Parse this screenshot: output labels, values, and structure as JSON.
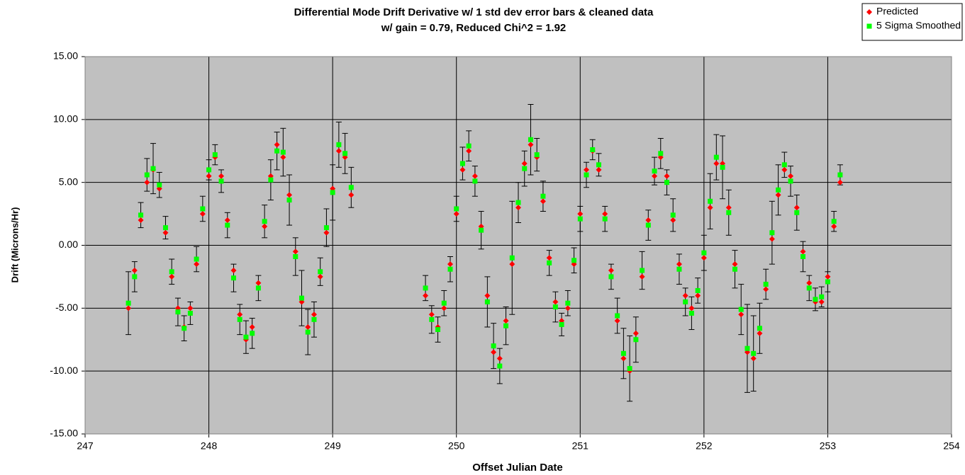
{
  "chart_data": {
    "type": "scatter",
    "title": "Differential Mode Drift Derivative w/ 1 std dev error bars & cleaned data",
    "subtitle": "w/ gain = 0.79, Reduced Chi^2 = 1.92",
    "x_label": "Offset Julian Date",
    "y_label": "Drift (Microns/Hr)",
    "legend": "top-right",
    "grid": true,
    "background": "#c0c0c0",
    "xlim": [
      247,
      254
    ],
    "xticks": [
      247,
      248,
      249,
      250,
      251,
      252,
      253,
      254
    ],
    "ylim": [
      -15,
      15
    ],
    "yticks": [
      {
        "value": -15,
        "label": "-15.00"
      },
      {
        "value": -10,
        "label": "-10.00"
      },
      {
        "value": -5,
        "label": "-5.00"
      },
      {
        "value": 0,
        "label": "0.00"
      },
      {
        "value": 5,
        "label": "5.00"
      },
      {
        "value": 10,
        "label": "10.00"
      },
      {
        "value": 15,
        "label": "15.00"
      }
    ],
    "x": [
      247.35,
      247.4,
      247.45,
      247.5,
      247.55,
      247.6,
      247.65,
      247.7,
      247.75,
      247.8,
      247.85,
      247.9,
      247.95,
      248.0,
      248.05,
      248.1,
      248.15,
      248.2,
      248.25,
      248.3,
      248.35,
      248.4,
      248.45,
      248.5,
      248.55,
      248.6,
      248.65,
      248.7,
      248.75,
      248.8,
      248.85,
      248.9,
      248.95,
      249.0,
      249.05,
      249.1,
      249.15,
      249.75,
      249.8,
      249.85,
      249.9,
      249.95,
      250.0,
      250.05,
      250.1,
      250.15,
      250.2,
      250.25,
      250.3,
      250.35,
      250.4,
      250.45,
      250.5,
      250.55,
      250.6,
      250.65,
      250.7,
      250.75,
      250.8,
      250.85,
      250.9,
      250.95,
      251.0,
      251.05,
      251.1,
      251.15,
      251.2,
      251.25,
      251.3,
      251.35,
      251.4,
      251.45,
      251.5,
      251.55,
      251.6,
      251.65,
      251.7,
      251.75,
      251.8,
      251.85,
      251.9,
      251.95,
      252.0,
      252.05,
      252.1,
      252.15,
      252.2,
      252.25,
      252.3,
      252.35,
      252.4,
      252.45,
      252.5,
      252.55,
      252.6,
      252.65,
      252.7,
      252.75,
      252.8,
      252.85,
      252.9,
      252.95,
      253.0,
      253.05,
      253.1
    ],
    "series": [
      {
        "name": "Predicted",
        "color": "#ff0000",
        "marker": "diamond",
        "values": [
          -5,
          -2,
          2,
          5,
          6,
          4.5,
          1,
          -2.5,
          -5,
          -6.5,
          -5,
          -1.5,
          2.5,
          5.5,
          7,
          5.5,
          2,
          -2,
          -5.5,
          -7.5,
          -6.5,
          -3,
          1.5,
          5.5,
          8,
          7,
          4,
          -0.5,
          -4.5,
          -6.5,
          -5.5,
          -2.5,
          1,
          4.5,
          7.5,
          7,
          4,
          -4,
          -5.5,
          -6.5,
          -5,
          -1.5,
          2.5,
          6,
          7.5,
          5.5,
          1.5,
          -4,
          -8.5,
          -9,
          -6,
          -1.5,
          3,
          6.5,
          8,
          7,
          3.5,
          -1,
          -4.5,
          -6,
          -5,
          -1.5,
          2.5,
          6,
          7.5,
          6,
          2.5,
          -2,
          -6,
          -9,
          -10,
          -7,
          -2.5,
          2,
          5.5,
          7,
          5.5,
          2,
          -1.5,
          -4,
          -5,
          -4,
          -1,
          3,
          6.5,
          6.5,
          3,
          -1.5,
          -5.5,
          -8.5,
          -9,
          -7,
          -3.5,
          0.5,
          4,
          6,
          5.5,
          3,
          -0.5,
          -3,
          -4.5,
          -4.5,
          -2.5,
          1.5,
          5
        ]
      },
      {
        "name": "5 Sigma Smoothed",
        "color": "#00ff00",
        "marker": "square",
        "values": [
          -4.6,
          -2.5,
          2.4,
          5.6,
          6.1,
          4.8,
          1.4,
          -2.1,
          -5.3,
          -6.6,
          -5.4,
          -1.1,
          2.9,
          6.0,
          7.2,
          5.1,
          1.6,
          -2.6,
          -5.9,
          -7.3,
          -7.0,
          -3.4,
          1.9,
          5.2,
          7.5,
          7.4,
          3.6,
          -0.9,
          -4.2,
          -6.9,
          -5.9,
          -2.1,
          1.4,
          4.2,
          8.0,
          7.3,
          4.6,
          -3.4,
          -5.9,
          -6.7,
          -4.6,
          -1.9,
          2.9,
          6.5,
          7.9,
          5.1,
          1.2,
          -4.5,
          -8.0,
          -9.6,
          -6.4,
          -1.0,
          3.4,
          6.1,
          8.4,
          7.2,
          3.9,
          -1.4,
          -4.9,
          -6.3,
          -4.6,
          -1.2,
          2.1,
          5.6,
          7.6,
          6.4,
          2.1,
          -2.5,
          -5.6,
          -8.6,
          -9.8,
          -7.5,
          -2.0,
          1.6,
          5.9,
          7.3,
          5.0,
          2.4,
          -1.9,
          -4.5,
          -5.4,
          -3.6,
          -0.6,
          3.5,
          7.0,
          6.2,
          2.6,
          -1.9,
          -5.1,
          -8.2,
          -8.6,
          -6.6,
          -3.1,
          1.0,
          4.4,
          6.4,
          5.1,
          2.6,
          -0.9,
          -3.4,
          -4.3,
          -4.1,
          -2.9,
          1.9,
          5.6
        ],
        "errors": [
          2.5,
          1.2,
          1.0,
          1.3,
          2.0,
          1.0,
          0.9,
          1.0,
          1.1,
          1.0,
          0.9,
          1.0,
          1.0,
          0.8,
          0.8,
          0.9,
          1.0,
          1.1,
          1.2,
          1.3,
          1.2,
          1.0,
          1.3,
          1.6,
          1.5,
          1.9,
          2.0,
          1.5,
          2.2,
          1.8,
          1.4,
          1.1,
          1.5,
          2.2,
          1.8,
          1.6,
          1.6,
          1.0,
          1.1,
          1.0,
          1.0,
          1.0,
          1.0,
          1.3,
          1.2,
          1.2,
          1.5,
          2.0,
          1.8,
          1.4,
          1.5,
          4.5,
          1.6,
          1.4,
          2.8,
          1.3,
          1.2,
          1.0,
          1.2,
          0.9,
          1.0,
          1.0,
          1.0,
          1.0,
          0.8,
          0.9,
          1.0,
          1.0,
          1.4,
          2.0,
          2.6,
          1.8,
          1.5,
          1.2,
          1.1,
          1.2,
          1.0,
          1.3,
          1.2,
          1.1,
          1.3,
          1.0,
          1.4,
          2.2,
          1.8,
          2.5,
          1.8,
          1.5,
          2.0,
          3.5,
          3.0,
          2.0,
          1.2,
          2.5,
          2.0,
          1.0,
          1.2,
          1.4,
          1.2,
          1.0,
          0.9,
          0.8,
          0.8,
          0.8,
          0.8
        ]
      }
    ]
  }
}
